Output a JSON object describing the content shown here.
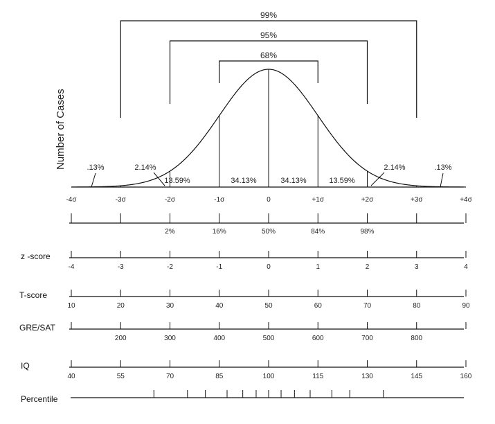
{
  "y_axis_label": "Number of Cases",
  "brackets": [
    {
      "label": "99%",
      "sigma": 3
    },
    {
      "label": "95%",
      "sigma": 2
    },
    {
      "label": "68%",
      "sigma": 1
    }
  ],
  "segment_percents": [
    "13.59%",
    "34.13%",
    "34.13%",
    "13.59%"
  ],
  "tail_labels": {
    "left_far": ".13%",
    "left_near": "2.14%",
    "right_near": "2.14%",
    "right_far": ".13%"
  },
  "sigma_labels": [
    "-4σ",
    "-3σ",
    "-2σ",
    "-1σ",
    "0",
    "+1σ",
    "+2σ",
    "+3σ",
    "+4σ"
  ],
  "cumulative_labels": [
    "",
    "",
    "2%",
    "16%",
    "50%",
    "84%",
    "98%",
    "",
    ""
  ],
  "scales": [
    {
      "name": "z -score",
      "ticks": [
        "-4",
        "-3",
        "-2",
        "-1",
        "0",
        "1",
        "2",
        "3",
        "4"
      ]
    },
    {
      "name": "T-score",
      "ticks": [
        "10",
        "20",
        "30",
        "40",
        "50",
        "60",
        "70",
        "80",
        "90"
      ]
    },
    {
      "name": "GRE/SAT",
      "ticks": [
        "",
        "200",
        "300",
        "400",
        "500",
        "600",
        "700",
        "800",
        ""
      ]
    },
    {
      "name": "IQ",
      "ticks": [
        "40",
        "55",
        "70",
        "85",
        "100",
        "115",
        "130",
        "145",
        "160"
      ]
    }
  ],
  "percentile": {
    "name": "Percentile"
  }
}
